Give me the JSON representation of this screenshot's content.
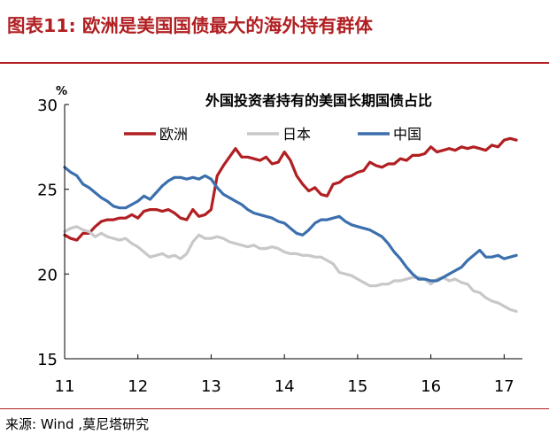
{
  "figure": {
    "label": "图表11:",
    "title": "欧洲是美国国债最大的海外持有群体",
    "source_label": "来源:",
    "source_text": "Wind ,莫尼塔研究"
  },
  "colors": {
    "header": "#b11f22",
    "europe": "#b11f22",
    "japan": "#c8c8c8",
    "china": "#3b6fad",
    "axis": "#000000"
  },
  "chart_data": {
    "type": "line",
    "title": "外国投资者持有的美国长期国债占比",
    "ylabel": "%",
    "xlabel": "",
    "xlim": [
      2011,
      2017.25
    ],
    "ylim": [
      15,
      30
    ],
    "yticks": [
      15,
      20,
      25,
      30
    ],
    "xticks": [
      {
        "value": 2011,
        "label": "11"
      },
      {
        "value": 2012,
        "label": "12"
      },
      {
        "value": 2013,
        "label": "13"
      },
      {
        "value": 2014,
        "label": "14"
      },
      {
        "value": 2015,
        "label": "15"
      },
      {
        "value": 2016,
        "label": "16"
      },
      {
        "value": 2017,
        "label": "17"
      }
    ],
    "grid": false,
    "legend_position": "top",
    "series": [
      {
        "name": "欧洲",
        "color": "#b11f22",
        "x": [
          2011.0,
          2011.083,
          2011.167,
          2011.25,
          2011.333,
          2011.417,
          2011.5,
          2011.583,
          2011.667,
          2011.75,
          2011.833,
          2011.917,
          2012.0,
          2012.083,
          2012.167,
          2012.25,
          2012.333,
          2012.417,
          2012.5,
          2012.583,
          2012.667,
          2012.75,
          2012.833,
          2012.917,
          2013.0,
          2013.083,
          2013.167,
          2013.25,
          2013.333,
          2013.417,
          2013.5,
          2013.583,
          2013.667,
          2013.75,
          2013.833,
          2013.917,
          2014.0,
          2014.083,
          2014.167,
          2014.25,
          2014.333,
          2014.417,
          2014.5,
          2014.583,
          2014.667,
          2014.75,
          2014.833,
          2014.917,
          2015.0,
          2015.083,
          2015.167,
          2015.25,
          2015.333,
          2015.417,
          2015.5,
          2015.583,
          2015.667,
          2015.75,
          2015.833,
          2015.917,
          2016.0,
          2016.083,
          2016.167,
          2016.25,
          2016.333,
          2016.417,
          2016.5,
          2016.583,
          2016.667,
          2016.75,
          2016.833,
          2016.917,
          2017.0,
          2017.083,
          2017.167
        ],
        "values": [
          22.3,
          22.1,
          22.0,
          22.4,
          22.4,
          22.8,
          23.1,
          23.2,
          23.2,
          23.3,
          23.3,
          23.5,
          23.3,
          23.7,
          23.8,
          23.8,
          23.7,
          23.8,
          23.6,
          23.3,
          23.2,
          23.8,
          23.4,
          23.5,
          23.8,
          25.8,
          26.4,
          26.9,
          27.4,
          26.9,
          26.9,
          26.8,
          26.7,
          26.9,
          26.5,
          26.6,
          27.2,
          26.7,
          25.8,
          25.3,
          24.9,
          25.1,
          24.7,
          24.6,
          25.3,
          25.4,
          25.7,
          25.8,
          26.0,
          26.1,
          26.6,
          26.4,
          26.3,
          26.5,
          26.5,
          26.8,
          26.7,
          27.0,
          27.0,
          27.1,
          27.5,
          27.2,
          27.3,
          27.4,
          27.3,
          27.5,
          27.4,
          27.5,
          27.4,
          27.3,
          27.6,
          27.5,
          27.9,
          28.0,
          27.9
        ]
      },
      {
        "name": "日本",
        "color": "#c8c8c8",
        "x": [
          2011.0,
          2011.083,
          2011.167,
          2011.25,
          2011.333,
          2011.417,
          2011.5,
          2011.583,
          2011.667,
          2011.75,
          2011.833,
          2011.917,
          2012.0,
          2012.083,
          2012.167,
          2012.25,
          2012.333,
          2012.417,
          2012.5,
          2012.583,
          2012.667,
          2012.75,
          2012.833,
          2012.917,
          2013.0,
          2013.083,
          2013.167,
          2013.25,
          2013.333,
          2013.417,
          2013.5,
          2013.583,
          2013.667,
          2013.75,
          2013.833,
          2013.917,
          2014.0,
          2014.083,
          2014.167,
          2014.25,
          2014.333,
          2014.417,
          2014.5,
          2014.583,
          2014.667,
          2014.75,
          2014.833,
          2014.917,
          2015.0,
          2015.083,
          2015.167,
          2015.25,
          2015.333,
          2015.417,
          2015.5,
          2015.583,
          2015.667,
          2015.75,
          2015.833,
          2015.917,
          2016.0,
          2016.083,
          2016.167,
          2016.25,
          2016.333,
          2016.417,
          2016.5,
          2016.583,
          2016.667,
          2016.75,
          2016.833,
          2016.917,
          2017.0,
          2017.083,
          2017.167
        ],
        "values": [
          22.5,
          22.7,
          22.8,
          22.6,
          22.5,
          22.2,
          22.4,
          22.2,
          22.1,
          22.0,
          22.1,
          21.8,
          21.6,
          21.3,
          21.0,
          21.1,
          21.2,
          21.0,
          21.1,
          20.9,
          21.2,
          21.9,
          22.3,
          22.1,
          22.1,
          22.2,
          22.1,
          21.9,
          21.8,
          21.7,
          21.6,
          21.7,
          21.5,
          21.5,
          21.6,
          21.5,
          21.3,
          21.2,
          21.2,
          21.1,
          21.1,
          21.0,
          21.0,
          20.8,
          20.6,
          20.1,
          20.0,
          19.9,
          19.7,
          19.5,
          19.3,
          19.3,
          19.4,
          19.4,
          19.6,
          19.6,
          19.7,
          19.8,
          19.8,
          19.7,
          19.4,
          19.7,
          19.8,
          19.6,
          19.7,
          19.5,
          19.4,
          19.0,
          18.9,
          18.6,
          18.4,
          18.3,
          18.1,
          17.9,
          17.8
        ]
      },
      {
        "name": "中国",
        "color": "#3b6fad",
        "x": [
          2011.0,
          2011.083,
          2011.167,
          2011.25,
          2011.333,
          2011.417,
          2011.5,
          2011.583,
          2011.667,
          2011.75,
          2011.833,
          2011.917,
          2012.0,
          2012.083,
          2012.167,
          2012.25,
          2012.333,
          2012.417,
          2012.5,
          2012.583,
          2012.667,
          2012.75,
          2012.833,
          2012.917,
          2013.0,
          2013.083,
          2013.167,
          2013.25,
          2013.333,
          2013.417,
          2013.5,
          2013.583,
          2013.667,
          2013.75,
          2013.833,
          2013.917,
          2014.0,
          2014.083,
          2014.167,
          2014.25,
          2014.333,
          2014.417,
          2014.5,
          2014.583,
          2014.667,
          2014.75,
          2014.833,
          2014.917,
          2015.0,
          2015.083,
          2015.167,
          2015.25,
          2015.333,
          2015.417,
          2015.5,
          2015.583,
          2015.667,
          2015.75,
          2015.833,
          2015.917,
          2016.0,
          2016.083,
          2016.167,
          2016.25,
          2016.333,
          2016.417,
          2016.5,
          2016.583,
          2016.667,
          2016.75,
          2016.833,
          2016.917,
          2017.0,
          2017.083,
          2017.167
        ],
        "values": [
          26.3,
          26.0,
          25.8,
          25.3,
          25.1,
          24.8,
          24.5,
          24.3,
          24.0,
          23.9,
          23.9,
          24.1,
          24.3,
          24.6,
          24.4,
          24.8,
          25.2,
          25.5,
          25.7,
          25.7,
          25.6,
          25.7,
          25.6,
          25.8,
          25.6,
          25.1,
          24.7,
          24.5,
          24.3,
          24.1,
          23.8,
          23.6,
          23.5,
          23.4,
          23.3,
          23.1,
          23.0,
          22.7,
          22.4,
          22.3,
          22.6,
          23.0,
          23.2,
          23.2,
          23.3,
          23.4,
          23.1,
          22.9,
          22.8,
          22.7,
          22.6,
          22.4,
          22.2,
          21.8,
          21.3,
          20.9,
          20.4,
          20.0,
          19.7,
          19.7,
          19.6,
          19.6,
          19.8,
          20.0,
          20.2,
          20.4,
          20.8,
          21.1,
          21.4,
          21.0,
          21.0,
          21.1,
          20.9,
          21.0,
          21.1
        ]
      }
    ]
  }
}
